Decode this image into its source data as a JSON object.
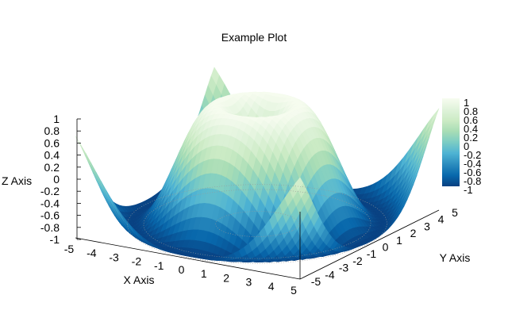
{
  "chart_data": {
    "type": "surface",
    "title": "Example Plot",
    "xlabel": "X Axis",
    "ylabel": "Y Axis",
    "zlabel": "Z Axis",
    "x_range": [
      -5,
      5
    ],
    "y_range": [
      -5,
      5
    ],
    "z_range": [
      -1,
      1
    ],
    "x_ticks": [
      "-5",
      "-4",
      "-3",
      "-2",
      "-1",
      "0",
      "1",
      "2",
      "3",
      "4",
      "5"
    ],
    "y_ticks": [
      "-5",
      "-4",
      "-3",
      "-2",
      "-1",
      "0",
      "1",
      "2",
      "3",
      "4",
      "5"
    ],
    "z_ticks": [
      "1",
      "0.8",
      "0.6",
      "0.4",
      "0.2",
      "0",
      "-0.2",
      "-0.4",
      "-0.6",
      "-0.8",
      "-1"
    ],
    "colorbar": {
      "range": [
        -1,
        1
      ],
      "ticks": [
        "1",
        "0.8",
        "0.6",
        "0.4",
        "0.2",
        "0",
        "-0.2",
        "-0.4",
        "-0.6",
        "-0.8",
        "-1"
      ],
      "colormap": [
        "#f7fcf0",
        "#e0f3db",
        "#ccebc5",
        "#a8ddb5",
        "#7bccc4",
        "#4eb3d3",
        "#2b8cbe",
        "#0868ac",
        "#084081"
      ]
    },
    "surface": "z = sin(sqrt(x^2 + y^2))",
    "has_base_contour": true,
    "grid": false
  }
}
